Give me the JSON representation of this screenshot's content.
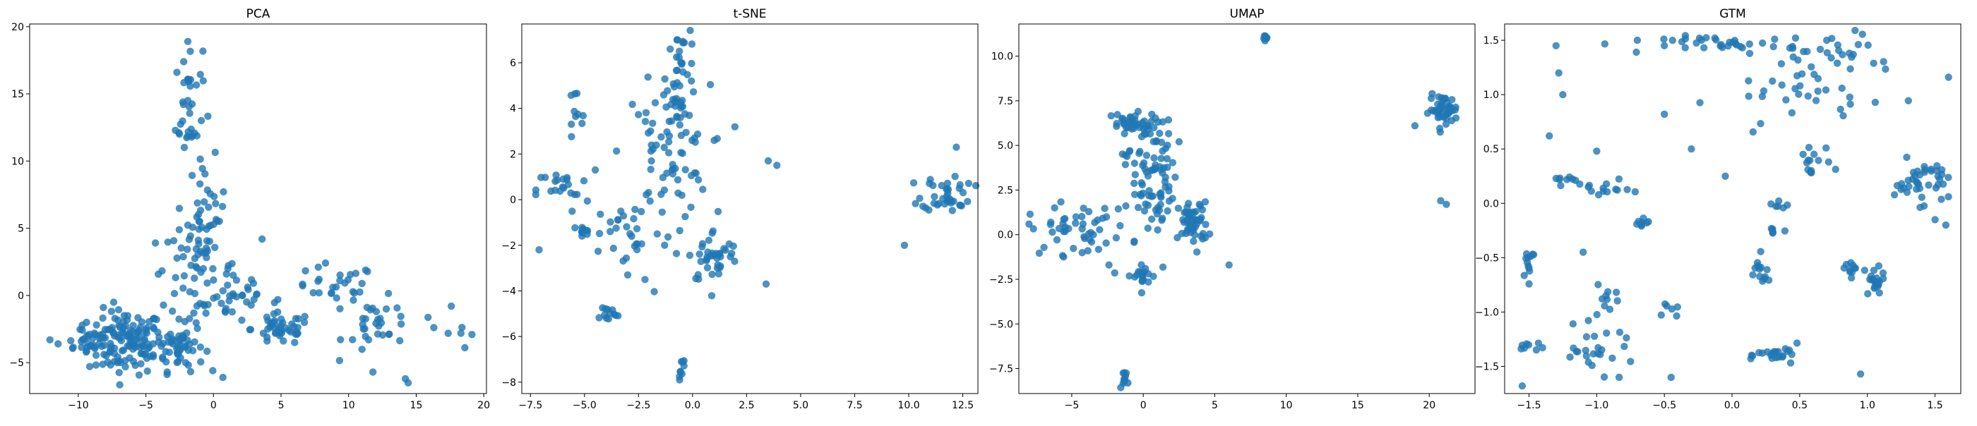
{
  "chart_data": [
    {
      "type": "scatter",
      "title": "PCA",
      "xlabel": "",
      "ylabel": "",
      "xlim": [
        -13.6,
        20.2
      ],
      "ylim": [
        -7.3,
        20.2
      ],
      "xticks": [
        -10,
        -5,
        0,
        5,
        10,
        15,
        20
      ],
      "yticks": [
        -5,
        0,
        5,
        10,
        15,
        20
      ],
      "xticklabels": [
        "−10",
        "−5",
        "0",
        "5",
        "10",
        "15",
        "20"
      ],
      "yticklabels": [
        "−5",
        "0",
        "5",
        "10",
        "15",
        "20"
      ],
      "color": "#1f77b4",
      "clusters": [
        {
          "cx": -6.5,
          "cy": -3.5,
          "sx": 1.4,
          "sy": 1.2,
          "n": 130
        },
        {
          "cx": -9.5,
          "cy": -3.2,
          "sx": 1.0,
          "sy": 0.6,
          "n": 22
        },
        {
          "cx": -2.5,
          "cy": -3.8,
          "sx": 0.9,
          "sy": 0.9,
          "n": 55
        },
        {
          "cx": -1.8,
          "cy": 14.0,
          "sx": 0.5,
          "sy": 2.4,
          "n": 35
        },
        {
          "cx": -0.5,
          "cy": 6.0,
          "sx": 0.7,
          "sy": 2.0,
          "n": 35
        },
        {
          "cx": -1.5,
          "cy": 2.0,
          "sx": 1.6,
          "sy": 1.5,
          "n": 50
        },
        {
          "cx": 1.5,
          "cy": 0.0,
          "sx": 1.4,
          "sy": 1.1,
          "n": 30
        },
        {
          "cx": 5.0,
          "cy": -2.5,
          "sx": 1.1,
          "sy": 0.6,
          "n": 45
        },
        {
          "cx": 9.0,
          "cy": 0.5,
          "sx": 1.6,
          "sy": 0.9,
          "n": 30
        },
        {
          "cx": 12.5,
          "cy": -2.3,
          "sx": 1.4,
          "sy": 1.0,
          "n": 30
        },
        {
          "cx": 18.3,
          "cy": -3.0,
          "sx": 0.7,
          "sy": 0.6,
          "n": 6
        }
      ],
      "points": [
        {
          "x": -1.9,
          "y": 18.9
        },
        {
          "x": -2.2,
          "y": 17.4
        },
        {
          "x": -2.7,
          "y": 16.6
        },
        {
          "x": 14.4,
          "y": -6.5
        },
        {
          "x": 14.2,
          "y": -6.2
        },
        {
          "x": 11.8,
          "y": -5.7
        },
        {
          "x": 0.7,
          "y": -6.1
        },
        {
          "x": -12.1,
          "y": -3.3
        },
        {
          "x": -11.5,
          "y": -3.6
        },
        {
          "x": 17.6,
          "y": -0.8
        },
        {
          "x": 3.6,
          "y": 4.2
        }
      ]
    },
    {
      "type": "scatter",
      "title": "t-SNE",
      "xlabel": "",
      "ylabel": "",
      "xlim": [
        -7.9,
        13.2
      ],
      "ylim": [
        -8.5,
        7.7
      ],
      "xticks": [
        -7.5,
        -5.0,
        -2.5,
        0.0,
        2.5,
        5.0,
        7.5,
        10.0,
        12.5
      ],
      "yticks": [
        -8,
        -6,
        -4,
        -2,
        0,
        2,
        4,
        6
      ],
      "xticklabels": [
        "−7.5",
        "−5.0",
        "−2.5",
        "0.0",
        "2.5",
        "5.0",
        "7.5",
        "10.0",
        "12.5"
      ],
      "yticklabels": [
        "−8",
        "−6",
        "−4",
        "−2",
        "0",
        "2",
        "4",
        "6"
      ],
      "color": "#1f77b4",
      "clusters": [
        {
          "cx": -0.5,
          "cy": 5.5,
          "sx": 0.35,
          "sy": 1.0,
          "n": 40
        },
        {
          "cx": -1.2,
          "cy": 2.0,
          "sx": 1.0,
          "sy": 1.5,
          "n": 70
        },
        {
          "cx": -5.5,
          "cy": 3.5,
          "sx": 0.3,
          "sy": 0.7,
          "n": 10
        },
        {
          "cx": -6.0,
          "cy": 0.4,
          "sx": 0.6,
          "sy": 0.5,
          "n": 22
        },
        {
          "cx": -5.0,
          "cy": -1.4,
          "sx": 0.4,
          "sy": 0.2,
          "n": 12
        },
        {
          "cx": -3.0,
          "cy": -1.5,
          "sx": 0.8,
          "sy": 0.8,
          "n": 25
        },
        {
          "cx": 1.0,
          "cy": -2.5,
          "sx": 0.6,
          "sy": 0.6,
          "n": 40
        },
        {
          "cx": 11.8,
          "cy": 0.3,
          "sx": 0.6,
          "sy": 0.4,
          "n": 40
        },
        {
          "cx": -4.0,
          "cy": -5.0,
          "sx": 0.3,
          "sy": 0.2,
          "n": 12
        },
        {
          "cx": -0.5,
          "cy": -7.5,
          "sx": 0.1,
          "sy": 0.4,
          "n": 8
        }
      ],
      "points": [
        {
          "x": -0.7,
          "y": 7.0
        },
        {
          "x": -7.1,
          "y": -2.2
        },
        {
          "x": 3.5,
          "y": 1.7
        },
        {
          "x": 3.9,
          "y": 1.5
        },
        {
          "x": 3.4,
          "y": -3.7
        },
        {
          "x": 9.8,
          "y": -2.0
        },
        {
          "x": 12.2,
          "y": 2.3
        },
        {
          "x": 1.0,
          "y": 2.6
        },
        {
          "x": -3.0,
          "y": -3.3
        },
        {
          "x": -0.6,
          "y": -7.9
        },
        {
          "x": -4.5,
          "y": 1.3
        },
        {
          "x": -2.2,
          "y": -3.5
        }
      ]
    },
    {
      "type": "scatter",
      "title": "UMAP",
      "xlabel": "",
      "ylabel": "",
      "xlim": [
        -8.7,
        23.2
      ],
      "ylim": [
        -8.9,
        11.8
      ],
      "xticks": [
        -5,
        0,
        5,
        10,
        15,
        20
      ],
      "yticks": [
        -7.5,
        -5.0,
        -2.5,
        0.0,
        2.5,
        5.0,
        7.5,
        10.0
      ],
      "xticklabels": [
        "−5",
        "0",
        "5",
        "10",
        "15",
        "20"
      ],
      "yticklabels": [
        "−7.5",
        "−5.0",
        "−2.5",
        "0.0",
        "2.5",
        "5.0",
        "7.5",
        "10.0"
      ],
      "color": "#1f77b4",
      "clusters": [
        {
          "cx": -1.0,
          "cy": 6.2,
          "sx": 1.0,
          "sy": 0.3,
          "n": 40
        },
        {
          "cx": 0.5,
          "cy": 4.0,
          "sx": 0.9,
          "sy": 1.2,
          "n": 60
        },
        {
          "cx": 0.8,
          "cy": 1.5,
          "sx": 0.9,
          "sy": 0.8,
          "n": 25
        },
        {
          "cx": 3.5,
          "cy": 0.6,
          "sx": 0.5,
          "sy": 0.6,
          "n": 55
        },
        {
          "cx": -4.5,
          "cy": 0.3,
          "sx": 1.8,
          "sy": 0.7,
          "n": 50
        },
        {
          "cx": -0.2,
          "cy": -2.3,
          "sx": 0.6,
          "sy": 0.4,
          "n": 20
        },
        {
          "cx": 21.0,
          "cy": 7.0,
          "sx": 0.5,
          "sy": 0.4,
          "n": 45
        },
        {
          "cx": 8.6,
          "cy": 11.0,
          "sx": 0.1,
          "sy": 0.1,
          "n": 8
        },
        {
          "cx": -1.3,
          "cy": -8.0,
          "sx": 0.2,
          "sy": 0.2,
          "n": 10
        }
      ],
      "points": [
        {
          "x": 6.0,
          "y": -1.7
        },
        {
          "x": 20.8,
          "y": 1.9
        },
        {
          "x": 21.2,
          "y": 1.7
        },
        {
          "x": 19.0,
          "y": 6.1
        },
        {
          "x": -2.4,
          "y": -1.7
        },
        {
          "x": -6.2,
          "y": 1.5
        }
      ]
    },
    {
      "type": "scatter",
      "title": "GTM",
      "xlabel": "",
      "ylabel": "",
      "xlim": [
        -1.68,
        1.69
      ],
      "ylim": [
        -1.75,
        1.65
      ],
      "xticks": [
        -1.5,
        -1.0,
        -0.5,
        0.0,
        0.5,
        1.0,
        1.5
      ],
      "yticks": [
        -1.5,
        -1.0,
        -0.5,
        0.0,
        0.5,
        1.0,
        1.5
      ],
      "xticklabels": [
        "−1.5",
        "−1.0",
        "−0.5",
        "0.0",
        "0.5",
        "1.0",
        "1.5"
      ],
      "yticklabels": [
        "−1.5",
        "−1.0",
        "−0.5",
        "0.0",
        "0.5",
        "1.0",
        "1.5"
      ],
      "color": "#1f77b4",
      "clusters": [
        {
          "cx": 0.0,
          "cy": 1.46,
          "sx": 0.25,
          "sy": 0.04,
          "n": 35
        },
        {
          "cx": 0.55,
          "cy": 1.3,
          "sx": 0.2,
          "sy": 0.1,
          "n": 20
        },
        {
          "cx": 1.0,
          "cy": 1.4,
          "sx": 0.15,
          "sy": 0.1,
          "n": 12
        },
        {
          "cx": 0.6,
          "cy": 0.95,
          "sx": 0.35,
          "sy": 0.1,
          "n": 22
        },
        {
          "cx": 0.6,
          "cy": 0.35,
          "sx": 0.06,
          "sy": 0.12,
          "n": 15
        },
        {
          "cx": 1.4,
          "cy": 0.2,
          "sx": 0.1,
          "sy": 0.1,
          "n": 40
        },
        {
          "cx": -1.2,
          "cy": 0.2,
          "sx": 0.1,
          "sy": 0.03,
          "n": 10
        },
        {
          "cx": -0.95,
          "cy": 0.12,
          "sx": 0.1,
          "sy": 0.04,
          "n": 12
        },
        {
          "cx": -1.5,
          "cy": -0.55,
          "sx": 0.03,
          "sy": 0.08,
          "n": 12
        },
        {
          "cx": -1.5,
          "cy": -1.3,
          "sx": 0.06,
          "sy": 0.04,
          "n": 8
        },
        {
          "cx": -1.0,
          "cy": -1.35,
          "sx": 0.15,
          "sy": 0.1,
          "n": 25
        },
        {
          "cx": 0.35,
          "cy": -1.4,
          "sx": 0.08,
          "sy": 0.05,
          "n": 22
        },
        {
          "cx": 1.05,
          "cy": -0.75,
          "sx": 0.04,
          "sy": 0.06,
          "n": 20
        },
        {
          "cx": 0.9,
          "cy": -0.6,
          "sx": 0.05,
          "sy": 0.04,
          "n": 12
        },
        {
          "cx": 0.2,
          "cy": -0.65,
          "sx": 0.04,
          "sy": 0.08,
          "n": 14
        },
        {
          "cx": -0.65,
          "cy": -0.18,
          "sx": 0.04,
          "sy": 0.04,
          "n": 8
        },
        {
          "cx": 0.3,
          "cy": -0.25,
          "sx": 0.04,
          "sy": 0.02,
          "n": 6
        },
        {
          "cx": 0.4,
          "cy": 0.0,
          "sx": 0.05,
          "sy": 0.03,
          "n": 6
        },
        {
          "cx": -0.95,
          "cy": -0.9,
          "sx": 0.05,
          "sy": 0.1,
          "n": 10
        },
        {
          "cx": -0.45,
          "cy": -1.0,
          "sx": 0.03,
          "sy": 0.03,
          "n": 6
        }
      ],
      "points": [
        {
          "x": -0.7,
          "y": 1.5
        },
        {
          "x": -1.0,
          "y": 0.48
        },
        {
          "x": -1.3,
          "y": 1.45
        },
        {
          "x": -1.25,
          "y": 1.0
        },
        {
          "x": -1.28,
          "y": 1.2
        },
        {
          "x": 1.6,
          "y": 1.16
        },
        {
          "x": -1.55,
          "y": -1.68
        },
        {
          "x": -0.45,
          "y": -1.6
        },
        {
          "x": 0.95,
          "y": -1.57
        },
        {
          "x": -0.5,
          "y": 0.82
        },
        {
          "x": -0.5,
          "y": 1.45
        },
        {
          "x": -0.3,
          "y": 0.5
        },
        {
          "x": 0.7,
          "y": 1.5
        },
        {
          "x": -1.35,
          "y": 0.62
        },
        {
          "x": -0.05,
          "y": 0.25
        },
        {
          "x": -1.1,
          "y": -0.45
        },
        {
          "x": 1.5,
          "y": -0.15
        },
        {
          "x": 1.58,
          "y": -0.2
        }
      ]
    }
  ]
}
